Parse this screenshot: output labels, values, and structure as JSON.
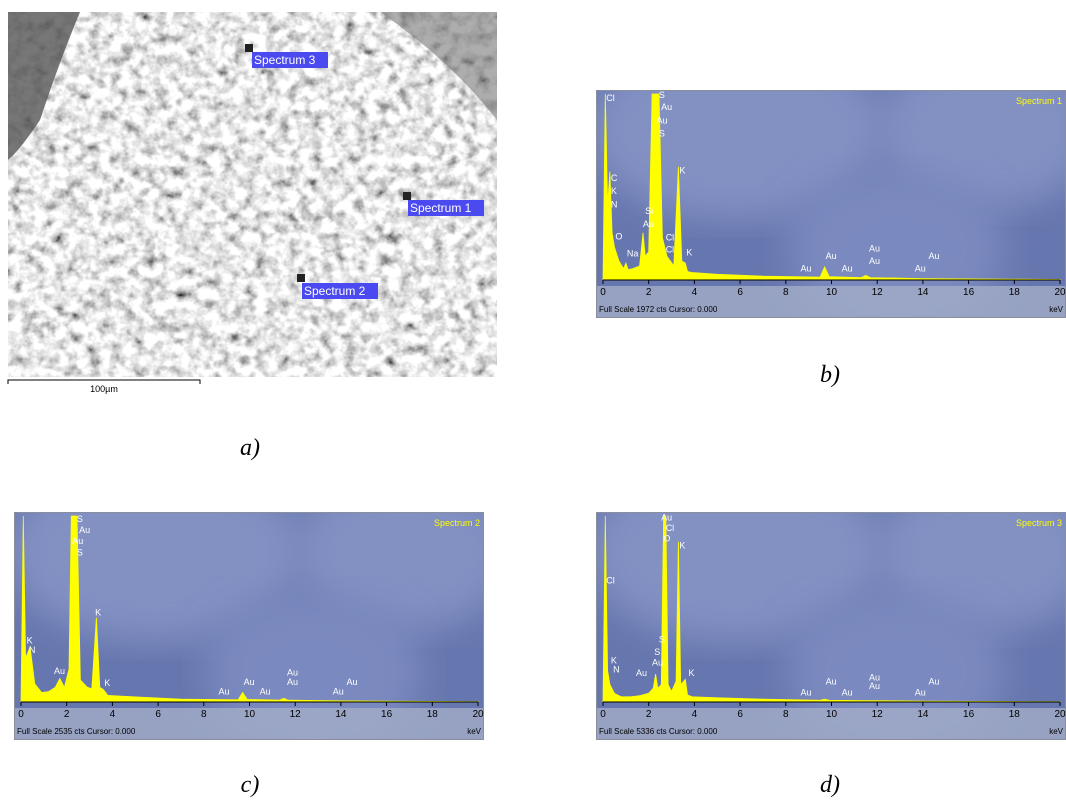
{
  "sem": {
    "labels": [
      "Spectrum 3",
      "Spectrum 1",
      "Spectrum 2"
    ],
    "scale_bar": "100µm",
    "caption": "a)"
  },
  "chart_data": [
    {
      "type": "area",
      "title": "Spectrum 1",
      "caption": "b)",
      "footer": "Full Scale 1972 cts Cursor: 0.000",
      "unit": "keV",
      "color": "#ffff00",
      "x": [
        0,
        0.1,
        0.2,
        0.3,
        0.4,
        0.5,
        0.7,
        0.9,
        1.0,
        1.1,
        1.3,
        1.6,
        1.75,
        1.85,
        2.0,
        2.15,
        2.3,
        2.45,
        2.6,
        2.8,
        3.1,
        3.3,
        3.45,
        3.6,
        3.7,
        3.9,
        5,
        7,
        9.5,
        9.7,
        9.9,
        11.3,
        11.5,
        11.7,
        14,
        20
      ],
      "values": [
        0,
        1972,
        800,
        1150,
        500,
        350,
        200,
        120,
        180,
        110,
        120,
        150,
        500,
        250,
        300,
        1972,
        1972,
        1972,
        450,
        250,
        150,
        1200,
        200,
        180,
        90,
        80,
        60,
        40,
        30,
        140,
        35,
        25,
        50,
        25,
        15,
        5
      ],
      "xlim": [
        0,
        20
      ],
      "ylim": [
        0,
        1972
      ],
      "xticks": [
        0,
        2,
        4,
        6,
        8,
        10,
        12,
        14,
        16,
        18,
        20
      ],
      "annotations": [
        {
          "text": "Cl",
          "x": 0.1,
          "y": 1900
        },
        {
          "text": "C",
          "x": 0.3,
          "y": 1050
        },
        {
          "text": "K",
          "x": 0.3,
          "y": 910
        },
        {
          "text": "N",
          "x": 0.3,
          "y": 770
        },
        {
          "text": "O",
          "x": 0.5,
          "y": 430
        },
        {
          "text": "Na",
          "x": 1.0,
          "y": 250
        },
        {
          "text": "Si",
          "x": 1.8,
          "y": 700
        },
        {
          "text": "Au",
          "x": 1.7,
          "y": 560
        },
        {
          "text": "Cl",
          "x": 2.7,
          "y": 420
        },
        {
          "text": "Cl",
          "x": 2.7,
          "y": 290
        },
        {
          "text": "S",
          "x": 2.4,
          "y": 1930
        },
        {
          "text": "Au",
          "x": 2.5,
          "y": 1800
        },
        {
          "text": "Au",
          "x": 2.3,
          "y": 1660
        },
        {
          "text": "S",
          "x": 2.4,
          "y": 1520
        },
        {
          "text": "K",
          "x": 3.3,
          "y": 1130
        },
        {
          "text": "K",
          "x": 3.6,
          "y": 260
        },
        {
          "text": "Au",
          "x": 8.6,
          "y": 90
        },
        {
          "text": "Au",
          "x": 9.7,
          "y": 220
        },
        {
          "text": "Au",
          "x": 10.4,
          "y": 90
        },
        {
          "text": "Au",
          "x": 11.6,
          "y": 300
        },
        {
          "text": "Au",
          "x": 11.6,
          "y": 170
        },
        {
          "text": "Au",
          "x": 13.6,
          "y": 90
        },
        {
          "text": "Au",
          "x": 14.2,
          "y": 220
        }
      ]
    },
    {
      "type": "area",
      "title": "Spectrum 2",
      "caption": "c)",
      "footer": "Full Scale 2535 cts Cursor: 0.000",
      "unit": "keV",
      "color": "#ffff00",
      "x": [
        0,
        0.1,
        0.2,
        0.4,
        0.6,
        0.9,
        1.2,
        1.5,
        1.7,
        1.9,
        2.1,
        2.2,
        2.3,
        2.45,
        2.6,
        2.9,
        3.1,
        3.3,
        3.45,
        3.6,
        3.8,
        5,
        7,
        9.5,
        9.7,
        9.9,
        11.3,
        11.5,
        11.7,
        14,
        20
      ],
      "values": [
        0,
        2535,
        600,
        750,
        250,
        130,
        140,
        200,
        320,
        200,
        450,
        2535,
        2535,
        2535,
        300,
        200,
        180,
        1150,
        200,
        170,
        90,
        70,
        40,
        30,
        130,
        35,
        25,
        50,
        25,
        15,
        5
      ],
      "xlim": [
        0,
        20
      ],
      "ylim": [
        0,
        2535
      ],
      "xticks": [
        0,
        2,
        4,
        6,
        8,
        10,
        12,
        14,
        16,
        18,
        20
      ],
      "annotations": [
        {
          "text": "S",
          "x": 2.4,
          "y": 2450
        },
        {
          "text": "Au",
          "x": 2.5,
          "y": 2300
        },
        {
          "text": "Au",
          "x": 2.2,
          "y": 2150
        },
        {
          "text": "S",
          "x": 2.4,
          "y": 2000
        },
        {
          "text": "K",
          "x": 0.2,
          "y": 800
        },
        {
          "text": "N",
          "x": 0.3,
          "y": 670
        },
        {
          "text": "Au",
          "x": 1.4,
          "y": 380
        },
        {
          "text": "K",
          "x": 3.2,
          "y": 1180
        },
        {
          "text": "K",
          "x": 3.6,
          "y": 220
        },
        {
          "text": "Au",
          "x": 8.6,
          "y": 100
        },
        {
          "text": "Au",
          "x": 9.7,
          "y": 230
        },
        {
          "text": "Au",
          "x": 10.4,
          "y": 100
        },
        {
          "text": "Au",
          "x": 11.6,
          "y": 360
        },
        {
          "text": "Au",
          "x": 11.6,
          "y": 230
        },
        {
          "text": "Au",
          "x": 13.6,
          "y": 100
        },
        {
          "text": "Au",
          "x": 14.2,
          "y": 230
        }
      ]
    },
    {
      "type": "area",
      "title": "Spectrum 3",
      "caption": "d)",
      "footer": "Full Scale 5336 cts Cursor: 0.000",
      "unit": "keV",
      "color": "#ffff00",
      "x": [
        0,
        0.1,
        0.2,
        0.3,
        0.5,
        0.8,
        1.2,
        1.6,
        2.0,
        2.2,
        2.3,
        2.4,
        2.55,
        2.65,
        2.75,
        2.85,
        3.0,
        3.2,
        3.3,
        3.4,
        3.6,
        3.7,
        3.9,
        5,
        7,
        9.5,
        9.7,
        9.9,
        11.5,
        14,
        20
      ],
      "values": [
        0,
        5336,
        900,
        500,
        250,
        150,
        150,
        180,
        250,
        400,
        800,
        400,
        500,
        5336,
        5336,
        500,
        300,
        600,
        4600,
        500,
        650,
        200,
        150,
        120,
        80,
        50,
        80,
        50,
        40,
        25,
        10
      ],
      "xlim": [
        0,
        20
      ],
      "ylim": [
        0,
        5336
      ],
      "xticks": [
        0,
        2,
        4,
        6,
        8,
        10,
        12,
        14,
        16,
        18,
        20
      ],
      "annotations": [
        {
          "text": "Au",
          "x": 2.5,
          "y": 5200
        },
        {
          "text": "Cl",
          "x": 2.7,
          "y": 4900
        },
        {
          "text": "O",
          "x": 2.6,
          "y": 4600
        },
        {
          "text": "K",
          "x": 3.3,
          "y": 4400
        },
        {
          "text": "Cl",
          "x": 0.1,
          "y": 3400
        },
        {
          "text": "K",
          "x": 0.3,
          "y": 1100
        },
        {
          "text": "N",
          "x": 0.4,
          "y": 850
        },
        {
          "text": "S",
          "x": 2.4,
          "y": 1700
        },
        {
          "text": "S",
          "x": 2.2,
          "y": 1350
        },
        {
          "text": "Au",
          "x": 2.1,
          "y": 1050
        },
        {
          "text": "Au",
          "x": 1.4,
          "y": 750
        },
        {
          "text": "K",
          "x": 3.7,
          "y": 750
        },
        {
          "text": "Au",
          "x": 8.6,
          "y": 180
        },
        {
          "text": "Au",
          "x": 9.7,
          "y": 500
        },
        {
          "text": "Au",
          "x": 10.4,
          "y": 180
        },
        {
          "text": "Au",
          "x": 11.6,
          "y": 620
        },
        {
          "text": "Au",
          "x": 11.6,
          "y": 380
        },
        {
          "text": "Au",
          "x": 13.6,
          "y": 180
        },
        {
          "text": "Au",
          "x": 14.2,
          "y": 500
        }
      ]
    }
  ]
}
